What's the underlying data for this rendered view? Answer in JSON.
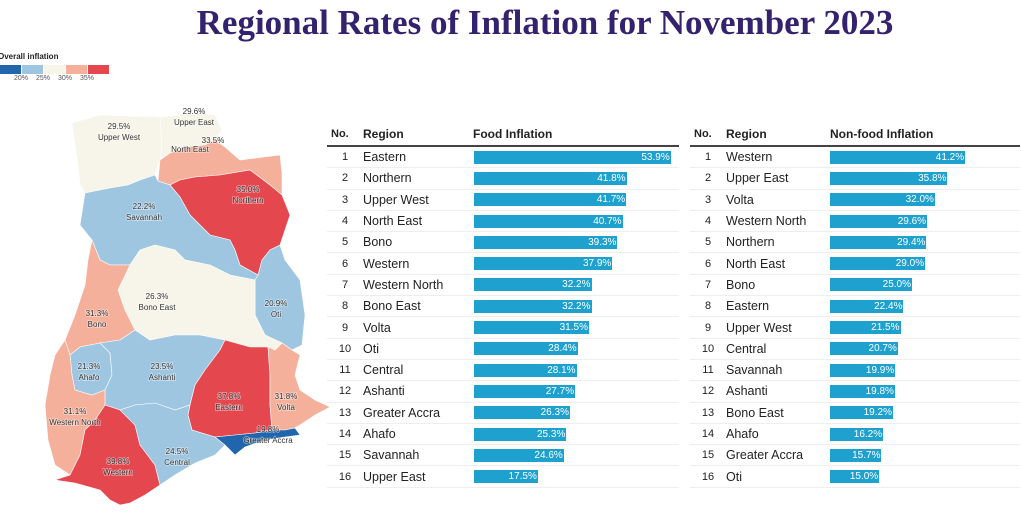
{
  "title": "Regional Rates of Inflation for November 2023",
  "legend": {
    "title": "Overall inflation",
    "colors": [
      "#2166ac",
      "#9ec6e0",
      "#f7f4e9",
      "#f4b09a",
      "#e5474f"
    ],
    "ticks": [
      "20%",
      "25%",
      "30%",
      "35%"
    ]
  },
  "map": {
    "regions": [
      {
        "name": "Upper West",
        "value": "29.5%"
      },
      {
        "name": "Upper East",
        "value": "29.6%"
      },
      {
        "name": "North East",
        "value": "33.5%"
      },
      {
        "name": "Northern",
        "value": "35.0%"
      },
      {
        "name": "Savannah",
        "value": "22.2%"
      },
      {
        "name": "Bono East",
        "value": "26.3%"
      },
      {
        "name": "Oti",
        "value": "20.9%"
      },
      {
        "name": "Bono",
        "value": "31.3%"
      },
      {
        "name": "Ahafo",
        "value": "21.3%"
      },
      {
        "name": "Ashanti",
        "value": "23.5%"
      },
      {
        "name": "Eastern",
        "value": "37.8%"
      },
      {
        "name": "Volta",
        "value": "31.8%"
      },
      {
        "name": "Western North",
        "value": "31.1%"
      },
      {
        "name": "Greater Accra",
        "value": "19.8%"
      },
      {
        "name": "Central",
        "value": "24.5%"
      },
      {
        "name": "Western",
        "value": "39.8%"
      }
    ]
  },
  "chart_data": [
    {
      "type": "bar",
      "title": "Food Inflation",
      "columns": [
        "No.",
        "Region",
        "Food Inflation"
      ],
      "categories": [
        "Eastern",
        "Northern",
        "Upper West",
        "North East",
        "Bono",
        "Western",
        "Western North",
        "Bono East",
        "Volta",
        "Oti",
        "Central",
        "Ashanti",
        "Greater Accra",
        "Ahafo",
        "Savannah",
        "Upper East"
      ],
      "values": [
        53.9,
        41.8,
        41.7,
        40.7,
        39.3,
        37.9,
        32.2,
        32.2,
        31.5,
        28.4,
        28.1,
        27.7,
        26.3,
        25.3,
        24.6,
        17.5
      ],
      "labels": [
        "53.9%",
        "41.8%",
        "41.7%",
        "40.7%",
        "39.3%",
        "37.9%",
        "32.2%",
        "32.2%",
        "31.5%",
        "28.4%",
        "28.1%",
        "27.7%",
        "26.3%",
        "25.3%",
        "24.6%",
        "17.5%"
      ],
      "color": "#1ea1cf"
    },
    {
      "type": "bar",
      "title": "Non-food Inflation",
      "columns": [
        "No.",
        "Region",
        "Non-food Inflation"
      ],
      "categories": [
        "Western",
        "Upper East",
        "Volta",
        "Western North",
        "Northern",
        "North East",
        "Bono",
        "Eastern",
        "Upper West",
        "Central",
        "Savannah",
        "Ashanti",
        "Bono East",
        "Ahafo",
        "Greater Accra",
        "Oti"
      ],
      "values": [
        41.2,
        35.8,
        32.0,
        29.6,
        29.4,
        29.0,
        25.0,
        22.4,
        21.5,
        20.7,
        19.9,
        19.8,
        19.2,
        16.2,
        15.7,
        15.0
      ],
      "labels": [
        "41.2%",
        "35.8%",
        "32.0%",
        "29.6%",
        "29.4%",
        "29.0%",
        "25.0%",
        "22.4%",
        "21.5%",
        "20.7%",
        "19.9%",
        "19.8%",
        "19.2%",
        "16.2%",
        "15.7%",
        "15.0%"
      ],
      "color": "#1ea1cf"
    }
  ]
}
